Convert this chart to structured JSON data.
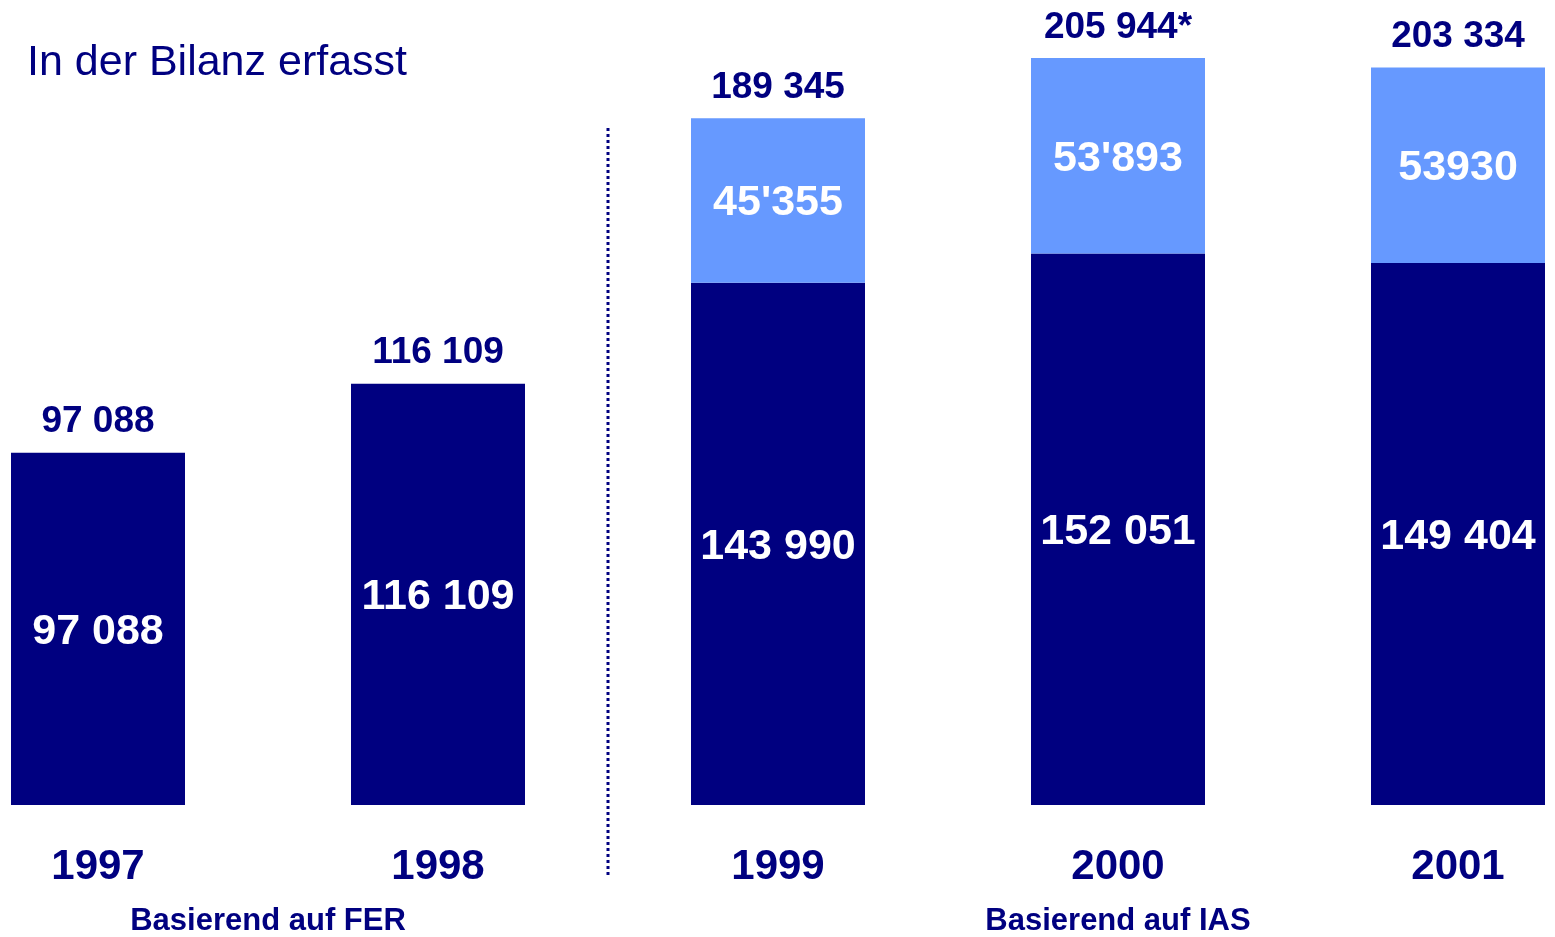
{
  "chart_data": {
    "type": "bar",
    "title": "In der Bilanz erfasst",
    "x": [
      1997,
      1998,
      1999,
      2000,
      2001
    ],
    "xlim": [
      1996.75,
      2001.25
    ],
    "xticks": [
      1997,
      1998,
      1999,
      2000,
      2001
    ],
    "stacked": true,
    "series": [
      {
        "color": "#000080",
        "values": [
          97088,
          116109,
          143990,
          152051,
          149404
        ],
        "value_labels": [
          "97 088",
          "116 109",
          "143 990",
          "152 051",
          "149 404"
        ]
      },
      {
        "color": "#6699ff",
        "values": [
          null,
          null,
          45355,
          53893,
          53930
        ],
        "value_labels": [
          null,
          null,
          "45'355",
          "53'893",
          "53930"
        ]
      }
    ],
    "totals": [
      "97 088",
      "116 109",
      "189 345",
      "205 944*",
      "203 334"
    ],
    "ref_lines": [
      {
        "axis": "x",
        "value": 1998.5,
        "line_style": "dotted",
        "color": "#000080"
      }
    ],
    "annotations": [
      "Basierend auf FER",
      "Basierend auf IAS"
    ],
    "grid": false,
    "tick_labels": "x"
  }
}
